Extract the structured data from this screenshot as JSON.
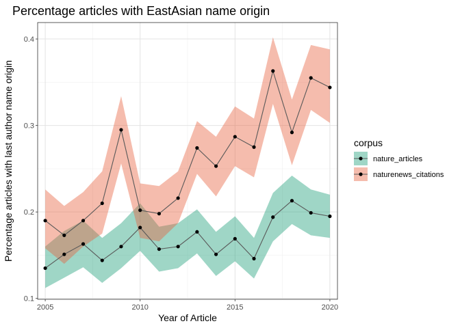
{
  "chart_data": {
    "type": "line",
    "title": "Percentage articles with EastAsian name origin",
    "xlabel": "Year of Article",
    "ylabel": "Percentage articles with last author name origin",
    "xlim": [
      2004.6,
      2020.4
    ],
    "ylim": [
      0.099,
      0.419
    ],
    "x_ticks": [
      2005,
      2010,
      2015,
      2020
    ],
    "y_ticks": [
      0.1,
      0.2,
      0.3,
      0.4
    ],
    "x_tick_labels": [
      "2005",
      "2010",
      "2015",
      "2020"
    ],
    "y_tick_labels": [
      "0.1",
      "0.2",
      "0.3",
      "0.4"
    ],
    "grid": true,
    "legend": {
      "title": "corpus",
      "position": "right"
    },
    "x": [
      2005,
      2006,
      2007,
      2008,
      2009,
      2010,
      2011,
      2012,
      2013,
      2014,
      2015,
      2016,
      2017,
      2018,
      2019,
      2020
    ],
    "series": [
      {
        "name": "nature_articles",
        "fill": "#1b9e77",
        "values": [
          0.135,
          0.151,
          0.163,
          0.144,
          0.16,
          0.182,
          0.157,
          0.16,
          0.177,
          0.151,
          0.169,
          0.146,
          0.194,
          0.213,
          0.199,
          0.195
        ],
        "lower": [
          0.112,
          0.124,
          0.136,
          0.118,
          0.135,
          0.155,
          0.131,
          0.135,
          0.152,
          0.126,
          0.143,
          0.123,
          0.166,
          0.186,
          0.173,
          0.17
        ],
        "upper": [
          0.16,
          0.178,
          0.19,
          0.17,
          0.187,
          0.21,
          0.183,
          0.187,
          0.203,
          0.177,
          0.195,
          0.17,
          0.222,
          0.242,
          0.226,
          0.22
        ]
      },
      {
        "name": "naturenews_citations",
        "fill": "#e8603c",
        "values": [
          0.19,
          0.173,
          0.19,
          0.21,
          0.295,
          0.202,
          0.198,
          0.216,
          0.274,
          0.253,
          0.287,
          0.275,
          0.363,
          0.292,
          0.355,
          0.344
        ],
        "lower": [
          0.158,
          0.14,
          0.16,
          0.175,
          0.256,
          0.17,
          0.166,
          0.187,
          0.244,
          0.218,
          0.253,
          0.24,
          0.325,
          0.254,
          0.318,
          0.303
        ],
        "upper": [
          0.226,
          0.207,
          0.223,
          0.247,
          0.334,
          0.233,
          0.23,
          0.247,
          0.305,
          0.287,
          0.322,
          0.308,
          0.402,
          0.33,
          0.393,
          0.388
        ]
      }
    ],
    "line_color": "#595959",
    "point_color": "#000000"
  }
}
